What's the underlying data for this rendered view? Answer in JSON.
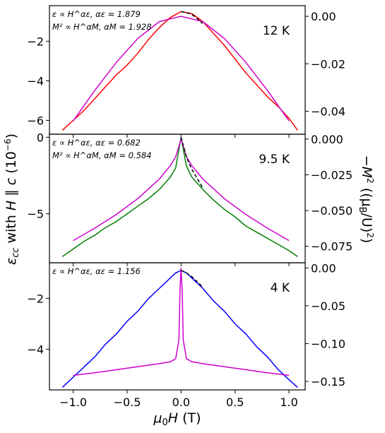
{
  "chart_data": {
    "type": "line",
    "xlabel": "μ0H (T)",
    "ylabel_left": "εcc with H ∥ c (10⁻⁶)",
    "ylabel_right": "−M² ((μB/U)²)",
    "xlim": [
      -1.22,
      1.15
    ],
    "xticks": [
      -1.0,
      -0.5,
      0.0,
      0.5,
      1.0
    ],
    "xtick_labels": [
      "−1.0",
      "−0.5",
      "0.0",
      "0.5",
      "1.0"
    ],
    "colors": {
      "magnetization": "#cc00cc",
      "fit": "#000000"
    },
    "panels": [
      {
        "temperature": "12 K",
        "annotation_lines": [
          "ε ∝ H^αε, αε = 1.879",
          "M² ∝ H^αM, αM = 1.928"
        ],
        "strain_color": "#ff0000",
        "ylim_left": [
          -6.7,
          -0.2
        ],
        "yticks_left": [
          -2,
          -4,
          -6
        ],
        "ytick_labels_left": [
          "−2",
          "−4",
          "−6"
        ],
        "ylim_right": [
          -0.0497,
          0.0045
        ],
        "yticks_right": [
          0.0,
          -0.02,
          -0.04
        ],
        "ytick_labels_right": [
          "0.00",
          "−0.02",
          "−0.04"
        ],
        "strain_x": [
          -1.1,
          -1.0,
          -0.9,
          -0.8,
          -0.7,
          -0.6,
          -0.5,
          -0.4,
          -0.3,
          -0.2,
          -0.1,
          0.0,
          0.1,
          0.2,
          0.3,
          0.4,
          0.5,
          0.6,
          0.7,
          0.8,
          0.9,
          1.0,
          1.08
        ],
        "strain_y": [
          -6.5,
          -6.0,
          -5.5,
          -4.9,
          -4.3,
          -3.7,
          -3.2,
          -2.6,
          -1.9,
          -1.3,
          -0.8,
          -0.5,
          -0.6,
          -1.0,
          -1.6,
          -2.2,
          -2.9,
          -3.6,
          -4.2,
          -4.8,
          -5.3,
          -5.9,
          -6.5
        ],
        "mag_x": [
          -1.0,
          -0.8,
          -0.6,
          -0.4,
          -0.2,
          0.0,
          0.2,
          0.4,
          0.6,
          0.8,
          1.0
        ],
        "mag_y": [
          -0.0441,
          -0.0312,
          -0.0194,
          -0.0093,
          -0.0022,
          0.0,
          -0.0022,
          -0.0093,
          -0.0194,
          -0.0312,
          -0.0441
        ],
        "fit_x": [
          0.0,
          0.05,
          0.1,
          0.15,
          0.2
        ],
        "fit_y": [
          -0.5,
          -0.55,
          -0.65,
          -0.85,
          -1.1
        ]
      },
      {
        "temperature": "9.5 K",
        "annotation_lines": [
          "ε ∝ H^αε, αε = 0.682",
          "M² ∝ H^αM, αM = 0.584"
        ],
        "strain_color": "#008000",
        "ylim_left": [
          -8.2,
          0.2
        ],
        "yticks_left": [
          0,
          -5
        ],
        "ytick_labels_left": [
          "0",
          "−5"
        ],
        "ylim_right": [
          -0.0865,
          0.0034
        ],
        "yticks_right": [
          0.0,
          -0.025,
          -0.05,
          -0.075
        ],
        "ytick_labels_right": [
          "0.000",
          "−0.025",
          "−0.050",
          "−0.075"
        ],
        "strain_x": [
          -1.1,
          -1.0,
          -0.9,
          -0.8,
          -0.7,
          -0.6,
          -0.5,
          -0.4,
          -0.3,
          -0.2,
          -0.1,
          -0.05,
          0.0,
          0.05,
          0.1,
          0.2,
          0.3,
          0.4,
          0.5,
          0.6,
          0.7,
          0.8,
          0.9,
          1.0,
          1.08
        ],
        "strain_y": [
          -7.8,
          -7.3,
          -6.8,
          -6.4,
          -5.9,
          -5.5,
          -5.0,
          -4.5,
          -4.0,
          -3.4,
          -2.6,
          -2.0,
          0.0,
          -1.9,
          -2.6,
          -3.4,
          -4.1,
          -4.7,
          -5.2,
          -5.8,
          -6.2,
          -6.6,
          -7.0,
          -7.4,
          -7.8
        ],
        "mag_x": [
          -1.0,
          -0.8,
          -0.6,
          -0.4,
          -0.2,
          -0.1,
          -0.05,
          0.0,
          0.05,
          0.1,
          0.2,
          0.4,
          0.6,
          0.8,
          1.0
        ],
        "mag_y": [
          -0.071,
          -0.0623,
          -0.0527,
          -0.0416,
          -0.0278,
          -0.0186,
          -0.0124,
          0.0,
          -0.0124,
          -0.0186,
          -0.0278,
          -0.0416,
          -0.0527,
          -0.0623,
          -0.071
        ],
        "fit_x": [
          0.0,
          0.05,
          0.1,
          0.15,
          0.2
        ],
        "fit_y": [
          0.0,
          -1.3,
          -2.1,
          -2.7,
          -3.3
        ]
      },
      {
        "temperature": "4 K",
        "annotation_lines": [
          "ε ∝ H^αε, αε = 1.156"
        ],
        "strain_color": "#0000ff",
        "ylim_left": [
          -5.6,
          -0.6
        ],
        "yticks_left": [
          -2,
          -4
        ],
        "ytick_labels_left": [
          "−2",
          "−4"
        ],
        "ylim_right": [
          -0.1612,
          0.0068
        ],
        "yticks_right": [
          0.0,
          -0.05,
          -0.1,
          -0.15
        ],
        "ytick_labels_right": [
          "0.00",
          "−0.05",
          "−0.10",
          "−0.15"
        ],
        "strain_x": [
          -1.1,
          -1.0,
          -0.9,
          -0.8,
          -0.7,
          -0.6,
          -0.5,
          -0.4,
          -0.3,
          -0.2,
          -0.1,
          -0.05,
          0.0,
          0.05,
          0.1,
          0.2,
          0.3,
          0.4,
          0.5,
          0.6,
          0.7,
          0.8,
          0.9,
          1.0,
          1.08
        ],
        "strain_y": [
          -5.5,
          -5.1,
          -4.7,
          -4.3,
          -3.8,
          -3.4,
          -2.9,
          -2.5,
          -2.0,
          -1.6,
          -1.2,
          -1.0,
          -0.9,
          -1.0,
          -1.2,
          -1.6,
          -2.1,
          -2.5,
          -3.0,
          -3.4,
          -3.9,
          -4.3,
          -4.8,
          -5.2,
          -5.5
        ],
        "mag_x": [
          -1.0,
          -0.8,
          -0.6,
          -0.4,
          -0.2,
          -0.1,
          -0.05,
          -0.02,
          -0.01,
          0.0,
          0.01,
          0.02,
          0.05,
          0.1,
          0.2,
          0.4,
          0.6,
          0.8,
          1.0
        ],
        "mag_y": [
          -0.142,
          -0.1385,
          -0.1345,
          -0.1305,
          -0.1265,
          -0.124,
          -0.12,
          -0.095,
          -0.03,
          0.0,
          -0.03,
          -0.095,
          -0.12,
          -0.124,
          -0.1265,
          -0.1305,
          -0.1345,
          -0.1385,
          -0.142
        ],
        "fit_x": [
          0.0,
          0.05,
          0.1,
          0.15,
          0.2
        ],
        "fit_y": [
          -0.9,
          -1.0,
          -1.15,
          -1.35,
          -1.55
        ]
      }
    ]
  }
}
